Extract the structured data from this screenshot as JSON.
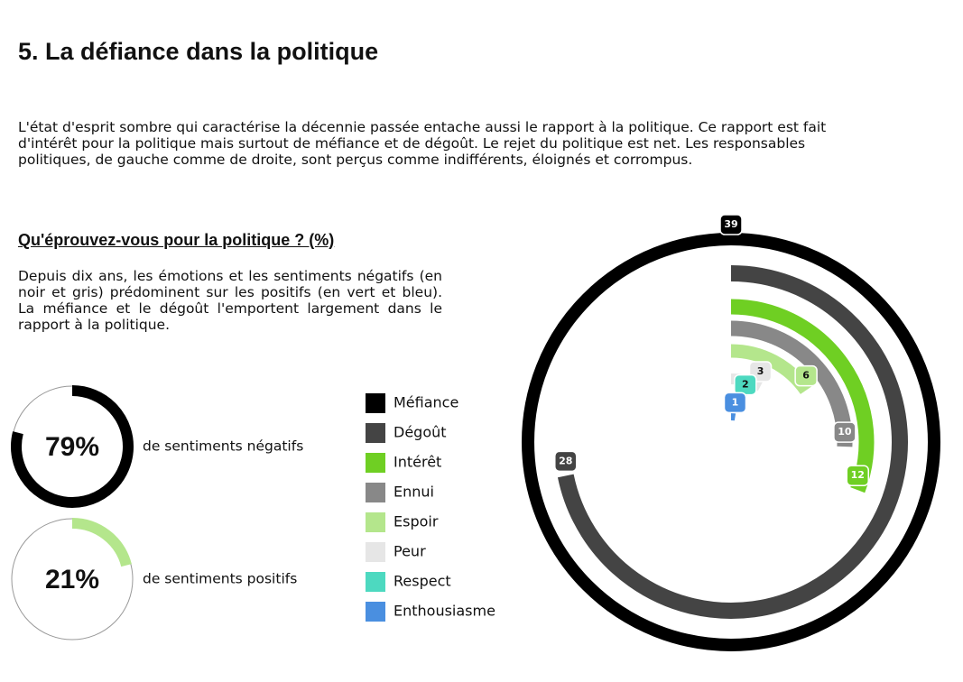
{
  "title": "5. La défiance dans la politique",
  "intro": "L'état d'esprit sombre qui caractérise la décennie passée entache aussi le rapport à la politique. Ce rapport est fait d'intérêt pour la politique mais surtout de méfiance et de dégoût. Le rejet du politique est net. Les responsables politiques, de gauche comme de droite, sont perçus comme indifférents, éloignés et corrompus.",
  "chart_data": [
    {
      "type": "radial_bar",
      "title": "Qu'éprouvez-vous pour la politique ? (%)",
      "subtitle": "Depuis dix ans, les émotions et les sentiments négatifs (en noir et gris) prédominent sur les positifs (en vert et bleu). La méfiance et le dégoût l'emportent largement dans le rapport à la politique.",
      "categories": [
        "Méfiance",
        "Dégoût",
        "Intérêt",
        "Ennui",
        "Espoir",
        "Peur",
        "Respect",
        "Enthousiasme"
      ],
      "values": [
        39,
        28,
        12,
        10,
        6,
        3,
        2,
        1
      ],
      "colors": [
        "#000000",
        "#444444",
        "#6fcf23",
        "#888888",
        "#b4e68c",
        "#e6e6e6",
        "#4dd9c0",
        "#4a8fe0"
      ]
    },
    {
      "type": "ring",
      "values": [
        79
      ],
      "value_labels": [
        "79%"
      ],
      "label": "de sentiments négatifs",
      "color": "#000000",
      "ylim": [
        0,
        100
      ]
    },
    {
      "type": "ring",
      "values": [
        21
      ],
      "value_labels": [
        "21%"
      ],
      "label": "de sentiments positifs",
      "color": "#b4e68c",
      "ylim": [
        0,
        100
      ]
    }
  ]
}
